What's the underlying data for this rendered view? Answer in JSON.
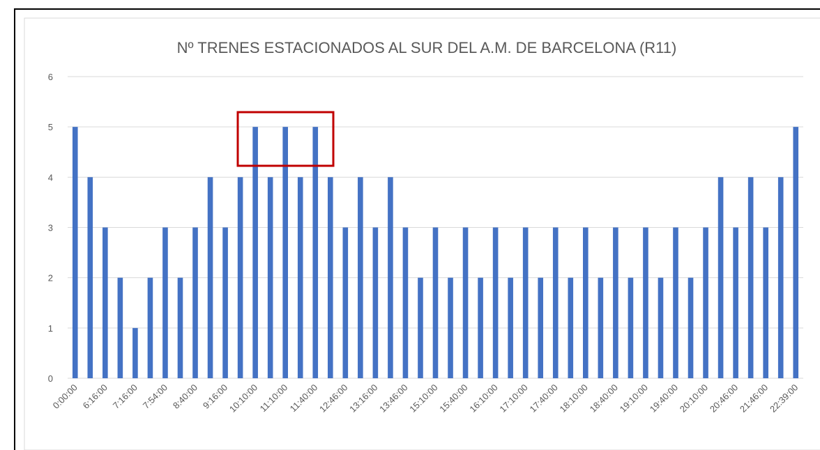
{
  "chart_data": {
    "type": "bar",
    "title": "Nº TRENES ESTACIONADOS AL SUR DEL A.M. DE BARCELONA (R11)",
    "categories": [
      "0:00:00",
      null,
      "6:16:00",
      null,
      "7:16:00",
      null,
      "7:54:00",
      null,
      "8:40:00",
      null,
      "9:16:00",
      null,
      "10:10:00",
      null,
      "11:10:00",
      null,
      "11:40:00",
      null,
      "12:46:00",
      null,
      "13:16:00",
      null,
      "13:46:00",
      null,
      "15:10:00",
      null,
      "15:40:00",
      null,
      "16:10:00",
      null,
      "17:10:00",
      null,
      "17:40:00",
      null,
      "18:10:00",
      null,
      "18:40:00",
      null,
      "19:10:00",
      null,
      "19:40:00",
      null,
      "20:10:00",
      null,
      "20:46:00",
      null,
      "21:46:00",
      null,
      "22:39:00"
    ],
    "values": [
      5,
      4,
      3,
      2,
      1,
      2,
      3,
      2,
      3,
      4,
      3,
      4,
      5,
      4,
      5,
      4,
      5,
      4,
      3,
      4,
      3,
      4,
      3,
      2,
      3,
      2,
      3,
      2,
      3,
      2,
      3,
      2,
      3,
      2,
      3,
      2,
      3,
      2,
      3,
      2,
      3,
      2,
      3,
      4,
      3,
      4,
      3,
      4,
      5
    ],
    "color": "#4472c4",
    "ylim": [
      0,
      6
    ],
    "yticks": [
      0,
      1,
      2,
      3,
      4,
      5,
      6
    ],
    "grid": true
  }
}
